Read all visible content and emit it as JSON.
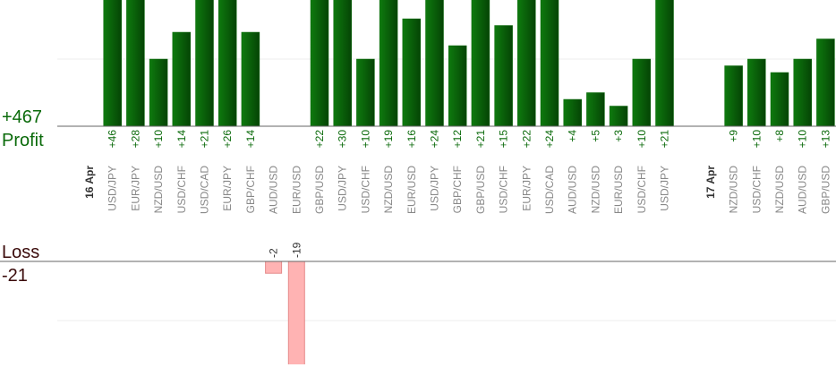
{
  "chart_data": {
    "type": "profit-loss-bar",
    "profit_total": {
      "value": 467,
      "label": "+467"
    },
    "profit_title": "Profit",
    "loss_title": "Loss",
    "loss_total": -21,
    "profit_color": "#0a6a0a",
    "loss_color": "#ffb3b3",
    "ylim": [
      0,
      18.8
    ],
    "yticks": [
      10
    ],
    "loss_ylim": [
      0,
      -17.4
    ],
    "loss_yticks": [
      -10
    ],
    "grid": true,
    "groups": [
      {
        "date": "16 Apr",
        "categories": [
          "USD/JPY",
          "EUR/JPY",
          "NZD/USD",
          "USD/CHF",
          "USD/CAD",
          "EUR/JPY",
          "GBP/CHF",
          "AUD/USD",
          "EUR/USD",
          "GBP/USD",
          "USD/JPY",
          "USD/CHF",
          "NZD/USD",
          "EUR/USD",
          "USD/JPY",
          "GBP/CHF",
          "GBP/USD",
          "USD/CHF",
          "EUR/JPY",
          "USD/CAD",
          "AUD/USD",
          "NZD/USD",
          "EUR/USD",
          "USD/CHF",
          "USD/JPY"
        ],
        "profit": [
          46,
          28,
          10,
          14,
          21,
          26,
          14,
          null,
          null,
          22,
          30,
          10,
          19,
          16,
          24,
          12,
          21,
          15,
          22,
          24,
          4,
          5,
          3,
          10,
          21
        ],
        "value_labels": [
          "+46",
          "+28",
          "+10",
          "+14",
          "+21",
          "+26",
          "+14",
          null,
          null,
          "+22",
          "+30",
          "+10",
          "+19",
          "+16",
          "+24",
          "+12",
          "+21",
          "+15",
          "+22",
          "+24",
          "+4",
          "+5",
          "+3",
          "+10",
          "+21"
        ],
        "loss": [
          null,
          null,
          null,
          null,
          null,
          null,
          null,
          -2,
          -19,
          null,
          null,
          null,
          null,
          null,
          null,
          null,
          null,
          null,
          null,
          null,
          null,
          null,
          null,
          null,
          null
        ]
      },
      {
        "date": "17 Apr",
        "categories": [
          "NZD/USD",
          "USD/CHF",
          "NZD/USD",
          "AUD/USD",
          "GBP/USD"
        ],
        "profit": [
          9,
          10,
          8,
          10,
          13
        ],
        "value_labels": [
          "+9",
          "+10",
          "+8",
          "+10",
          "+13"
        ],
        "loss": [
          null,
          null,
          null,
          null,
          null
        ]
      }
    ]
  }
}
